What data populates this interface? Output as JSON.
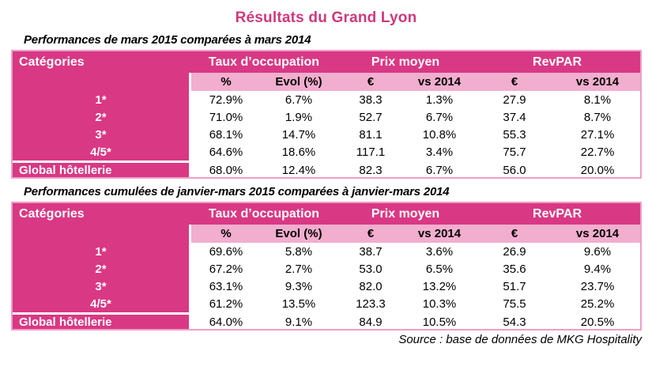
{
  "title": "Résultats du Grand Lyon",
  "colors": {
    "header_bg": "#D93884",
    "subheader_bg": "#F2AECE",
    "table_border": "#ED9FC6",
    "title_color": "#CE397B",
    "header_text": "#FFFFFF",
    "body_text": "#000000"
  },
  "tables": [
    {
      "caption": "Performances de mars 2015 comparées à mars 2014",
      "categories_header": "Catégories",
      "group_headers": [
        "Taux d’occupation",
        "Prix moyen",
        "RevPAR"
      ],
      "sub_headers": [
        "%",
        "Evol (%)",
        "€",
        "vs 2014",
        "€",
        "vs 2014"
      ],
      "rows": [
        {
          "label": "1*",
          "values": [
            "72.9%",
            "6.7%",
            "38.3",
            "1.3%",
            "27.9",
            "8.1%"
          ]
        },
        {
          "label": "2*",
          "values": [
            "71.0%",
            "1.9%",
            "52.7",
            "6.7%",
            "37.4",
            "8.7%"
          ]
        },
        {
          "label": "3*",
          "values": [
            "68.1%",
            "14.7%",
            "81.1",
            "10.8%",
            "55.3",
            "27.1%"
          ]
        },
        {
          "label": "4/5*",
          "values": [
            "64.6%",
            "18.6%",
            "117.1",
            "3.4%",
            "75.7",
            "22.7%"
          ]
        }
      ],
      "total_row": {
        "label": "Global hôtellerie",
        "values": [
          "68.0%",
          "12.4%",
          "82.3",
          "6.7%",
          "56.0",
          "20.0%"
        ]
      }
    },
    {
      "caption": "Performances cumulées de janvier-mars 2015 comparées à janvier-mars 2014",
      "categories_header": "Catégories",
      "group_headers": [
        "Taux d’occupation",
        "Prix moyen",
        "RevPAR"
      ],
      "sub_headers": [
        "%",
        "Evol (%)",
        "€",
        "vs 2014",
        "€",
        "vs 2014"
      ],
      "rows": [
        {
          "label": "1*",
          "values": [
            "69.6%",
            "5.8%",
            "38.7",
            "3.6%",
            "26.9",
            "9.6%"
          ]
        },
        {
          "label": "2*",
          "values": [
            "67.2%",
            "2.7%",
            "53.0",
            "6.5%",
            "35.6",
            "9.4%"
          ]
        },
        {
          "label": "3*",
          "values": [
            "63.1%",
            "9.3%",
            "82.0",
            "13.2%",
            "51.7",
            "23.7%"
          ]
        },
        {
          "label": "4/5*",
          "values": [
            "61.2%",
            "13.5%",
            "123.3",
            "10.3%",
            "75.5",
            "25.2%"
          ]
        }
      ],
      "total_row": {
        "label": "Global hôtellerie",
        "values": [
          "64.0%",
          "9.1%",
          "84.9",
          "10.5%",
          "54.3",
          "20.5%"
        ]
      }
    }
  ],
  "source_note": "Source : base de données de MKG Hospitality"
}
